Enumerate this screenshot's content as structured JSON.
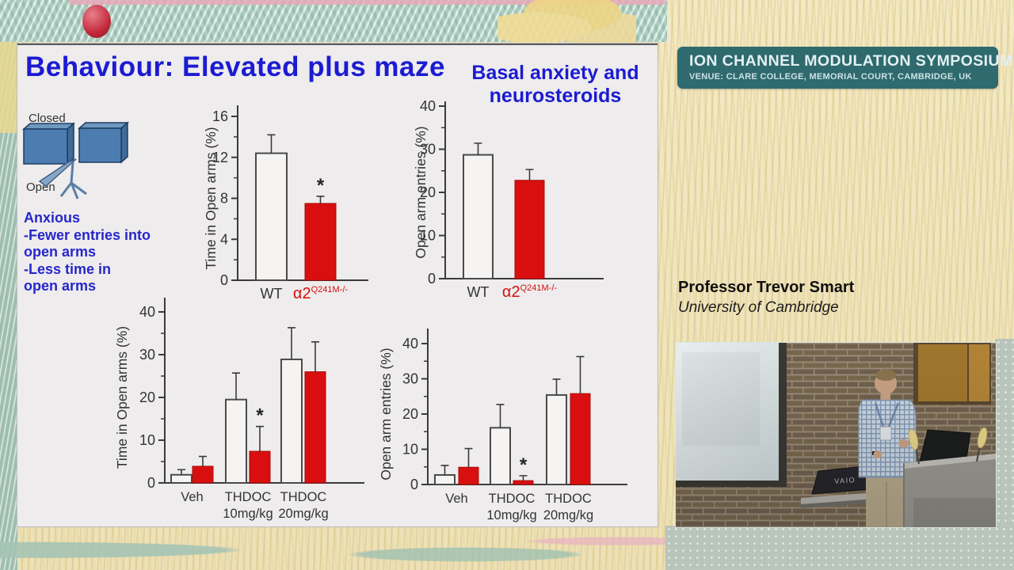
{
  "slide": {
    "title": "Behaviour: Elevated plus maze",
    "subtitle": "Basal anxiety and\nneurosteroids",
    "maze": {
      "closed_label": "Closed",
      "open_label": "Open"
    },
    "notes": "Anxious\n-Fewer entries into\n open arms\n-Less time in\nopen arms"
  },
  "sidebar": {
    "banner": {
      "title": "ION CHANNEL MODULATION SYMPOSIUM",
      "venue": "VENUE: CLARE COLLEGE, MEMORIAL COURT, CAMBRIDGE, UK",
      "bg_color": "#2e6a6e"
    },
    "speaker": {
      "name": "Professor Trevor Smart",
      "affiliation": "University of Cambridge"
    },
    "video": {
      "laptop_brand": "VAIO"
    }
  },
  "colors": {
    "title_blue": "#1b1bd2",
    "bar_red": "#d90f0f",
    "bar_white": "#f6f4f2",
    "axis": "#3b3b3b",
    "mutant_label_red": "#d40f0f"
  },
  "chart_data": [
    {
      "id": "basal-time",
      "type": "bar",
      "ylabel": "Time in Open arms (%)",
      "ylim": [
        0,
        16
      ],
      "yticks": [
        0,
        4,
        8,
        12,
        16
      ],
      "minor_ticks": [
        2,
        6,
        10,
        14
      ],
      "bars": [
        {
          "label": "WT",
          "sup": "",
          "value": 12.4,
          "error": 1.8,
          "sig": false,
          "fill": "white",
          "label_color": "#333333"
        },
        {
          "label": "α2",
          "sup": "Q241M-/-",
          "value": 7.5,
          "error": 0.7,
          "sig": true,
          "fill": "red",
          "label_color": "#d40f0f"
        }
      ]
    },
    {
      "id": "basal-entries",
      "type": "bar",
      "ylabel": "Open arm entries (%)",
      "ylim": [
        0,
        40
      ],
      "yticks": [
        0,
        10,
        20,
        30,
        40
      ],
      "minor_ticks": [
        5,
        15,
        25,
        35
      ],
      "bars": [
        {
          "label": "WT",
          "sup": "",
          "value": 28.7,
          "error": 2.7,
          "sig": false,
          "fill": "white",
          "label_color": "#333333"
        },
        {
          "label": "α2",
          "sup": "Q241M-/-",
          "value": 22.8,
          "error": 2.5,
          "sig": false,
          "fill": "red",
          "label_color": "#d40f0f"
        }
      ]
    },
    {
      "id": "thdoc-time",
      "type": "bar",
      "ylabel": "Time in Open arms (%)",
      "ylim": [
        0,
        40
      ],
      "yticks": [
        0,
        10,
        20,
        30,
        40
      ],
      "minor_ticks": [
        5,
        15,
        25,
        35
      ],
      "group_labels": [
        [
          "Veh"
        ],
        [
          "THDOC",
          "10mg/kg"
        ],
        [
          "THDOC",
          "20mg/kg"
        ]
      ],
      "series": [
        {
          "name": "WT",
          "fill": "white",
          "values": [
            1.9,
            19.5,
            28.9
          ],
          "errors": [
            1.2,
            6.2,
            7.4
          ],
          "sig": [
            false,
            false,
            false
          ]
        },
        {
          "name": "α2Q241M-/-",
          "fill": "red",
          "values": [
            3.9,
            7.4,
            26.0
          ],
          "errors": [
            2.3,
            5.8,
            7.0
          ],
          "sig": [
            false,
            true,
            false
          ]
        }
      ]
    },
    {
      "id": "thdoc-entries",
      "type": "bar",
      "ylabel": "Open arm entries (%)",
      "ylim": [
        0,
        40
      ],
      "yticks": [
        0,
        10,
        20,
        30,
        40
      ],
      "minor_ticks": [
        5,
        15,
        25,
        35
      ],
      "group_labels": [
        [
          "Veh"
        ],
        [
          "THDOC",
          "10mg/kg"
        ],
        [
          "THDOC",
          "20mg/kg"
        ]
      ],
      "series": [
        {
          "name": "WT",
          "fill": "white",
          "values": [
            2.7,
            16.1,
            25.4
          ],
          "errors": [
            2.7,
            6.6,
            4.5
          ],
          "sig": [
            false,
            false,
            false
          ]
        },
        {
          "name": "α2Q241M-/-",
          "fill": "red",
          "values": [
            4.9,
            1.1,
            25.8
          ],
          "errors": [
            5.3,
            1.4,
            10.5
          ],
          "sig": [
            false,
            true,
            false
          ]
        }
      ]
    }
  ]
}
